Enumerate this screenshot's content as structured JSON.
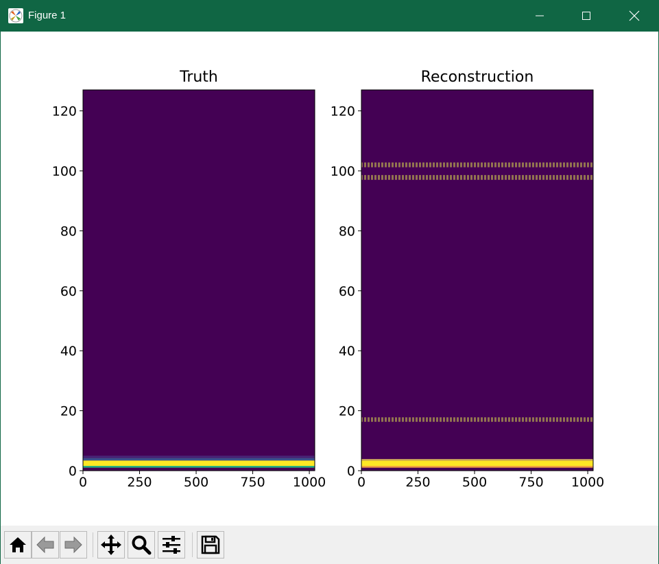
{
  "window": {
    "title": "Figure 1",
    "titlebar_color": "#106644",
    "icons": [
      "matplotlib-icon",
      "minimize-icon",
      "maximize-icon",
      "close-icon"
    ]
  },
  "toolbar": {
    "buttons": [
      {
        "name": "home-button",
        "icon": "home-icon"
      },
      {
        "name": "back-button",
        "icon": "back-arrow-icon"
      },
      {
        "name": "forward-button",
        "icon": "forward-arrow-icon"
      },
      {
        "name": "pan-button",
        "icon": "move-icon"
      },
      {
        "name": "zoom-button",
        "icon": "magnifier-icon"
      },
      {
        "name": "configure-subplots-button",
        "icon": "sliders-icon"
      },
      {
        "name": "save-button",
        "icon": "floppy-disk-icon"
      }
    ]
  },
  "chart_data": [
    {
      "type": "heatmap",
      "title": "Truth",
      "xlabel": "",
      "ylabel": "",
      "xlim": [
        0,
        1024
      ],
      "ylim": [
        0,
        127
      ],
      "xticks": [
        0,
        250,
        500,
        750,
        1000
      ],
      "yticks": [
        0,
        20,
        40,
        60,
        80,
        100,
        120
      ],
      "colormap": "viridis",
      "background_color": "#440154",
      "bands": [
        {
          "y0": 1.0,
          "y1": 1.6,
          "color": "#27ad81",
          "pattern": "solid"
        },
        {
          "y0": 1.6,
          "y1": 3.4,
          "color": "#fde725",
          "pattern": "solid"
        },
        {
          "y0": 3.4,
          "y1": 4.2,
          "color": "#3b528b",
          "pattern": "solid"
        },
        {
          "y0": 4.2,
          "y1": 5.0,
          "color": "#482475",
          "pattern": "solid"
        }
      ]
    },
    {
      "type": "heatmap",
      "title": "Reconstruction",
      "xlabel": "",
      "ylabel": "",
      "xlim": [
        0,
        1024
      ],
      "ylim": [
        0,
        127
      ],
      "xticks": [
        0,
        250,
        500,
        750,
        1000
      ],
      "yticks": [
        0,
        20,
        40,
        60,
        80,
        100,
        120
      ],
      "colormap": "viridis",
      "background_color": "#440154",
      "bands": [
        {
          "y0": 1.0,
          "y1": 1.6,
          "color": "#f1a340",
          "pattern": "solid"
        },
        {
          "y0": 1.6,
          "y1": 3.4,
          "color": "#fde725",
          "pattern": "solid"
        },
        {
          "y0": 3.4,
          "y1": 3.9,
          "color": "#c8a45a",
          "pattern": "solid"
        },
        {
          "y0": 16.3,
          "y1": 17.8,
          "color": "#a08850",
          "pattern": "dashed"
        },
        {
          "y0": 97.0,
          "y1": 98.6,
          "color": "#a08850",
          "pattern": "dashed"
        },
        {
          "y0": 101.2,
          "y1": 102.8,
          "color": "#a08850",
          "pattern": "dashed"
        }
      ]
    }
  ]
}
